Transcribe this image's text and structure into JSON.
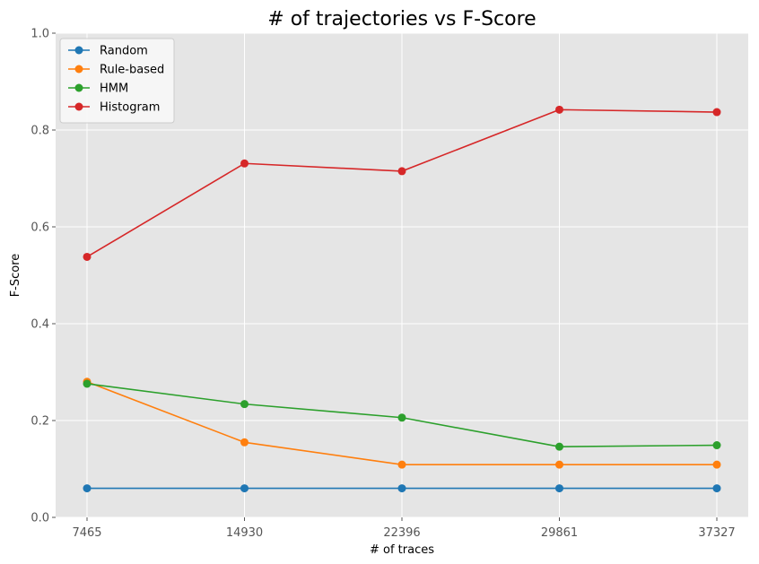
{
  "chart_data": {
    "type": "line",
    "title": "# of trajectories vs F-Score",
    "xlabel": "# of traces",
    "ylabel": "F-Score",
    "categories": [
      "7465",
      "14930",
      "22396",
      "29861",
      "37327"
    ],
    "ylim": [
      0,
      1.0
    ],
    "yticks": [
      "0.0",
      "0.2",
      "0.4",
      "0.6",
      "0.8",
      "1.0"
    ],
    "ytick_values": [
      0,
      0.2,
      0.4,
      0.6,
      0.8,
      1.0
    ],
    "grid": true,
    "legend_position": "top-left",
    "background_color": "#e5e5e5",
    "series": [
      {
        "name": "Random",
        "color": "#1f77b4",
        "values": [
          0.06,
          0.06,
          0.06,
          0.06,
          0.06
        ]
      },
      {
        "name": "Rule-based",
        "color": "#ff7f0e",
        "values": [
          0.28,
          0.155,
          0.109,
          0.109,
          0.109
        ]
      },
      {
        "name": "HMM",
        "color": "#2ca02c",
        "values": [
          0.276,
          0.234,
          0.206,
          0.146,
          0.149
        ]
      },
      {
        "name": "Histogram",
        "color": "#d62728",
        "values": [
          0.538,
          0.731,
          0.715,
          0.842,
          0.837
        ]
      }
    ]
  }
}
